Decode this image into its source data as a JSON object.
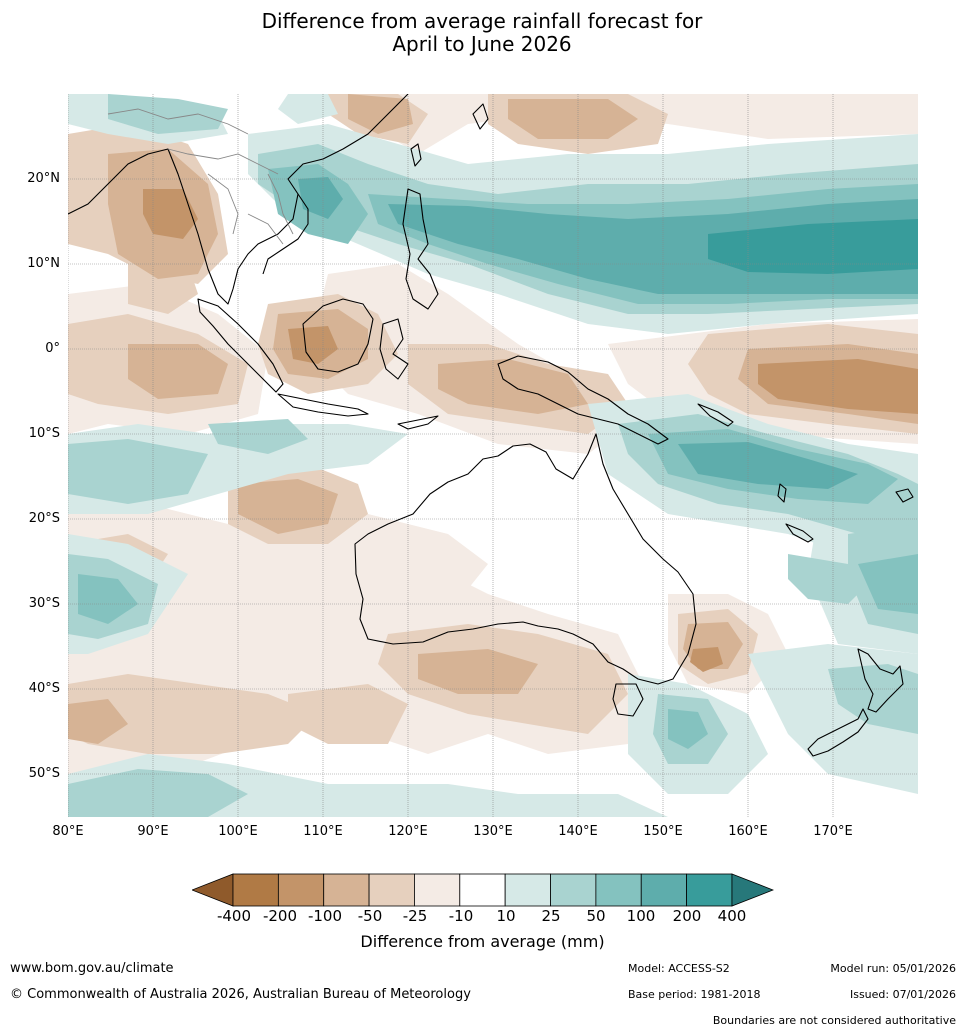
{
  "title": {
    "line1": "Difference from average rainfall forecast for",
    "line2": "April to June 2026"
  },
  "map": {
    "latitude_labels": [
      "20°N",
      "10°N",
      "0°",
      "10°S",
      "20°S",
      "30°S",
      "40°S",
      "50°S"
    ],
    "longitude_labels": [
      "80°E",
      "90°E",
      "100°E",
      "110°E",
      "120°E",
      "130°E",
      "140°E",
      "150°E",
      "160°E",
      "170°E"
    ],
    "regions_wetter": [
      "Philippines",
      "western tropical Pacific",
      "Coral Sea",
      "Tasman Sea"
    ],
    "regions_drier": [
      "Myanmar",
      "Borneo",
      "Sulawesi",
      "New Guinea",
      "equatorial Pacific",
      "south-east Australia"
    ]
  },
  "colorbar": {
    "title": "Difference from average (mm)",
    "labels": [
      "-400",
      "-200",
      "-100",
      "-50",
      "-25",
      "-10",
      "10",
      "25",
      "50",
      "100",
      "200",
      "400"
    ],
    "colors": [
      "#8f5a2b",
      "#b07a45",
      "#c39469",
      "#d6b395",
      "#e6d0be",
      "#f4ebe5",
      "#ffffff",
      "#d6e9e7",
      "#a9d3d0",
      "#84c2bf",
      "#5eadac",
      "#389c9b",
      "#27787a"
    ]
  },
  "footer": {
    "website": "www.bom.gov.au/climate",
    "copyright": "© Commonwealth of Australia 2026, Australian Bureau of Meteorology",
    "model": "Model: ACCESS-S2",
    "base_period": "Base period: 1981-2018",
    "model_run": "Model run: 05/01/2026",
    "issued": "Issued: 07/01/2026",
    "disclaimer": "Boundaries are not considered authoritative"
  }
}
